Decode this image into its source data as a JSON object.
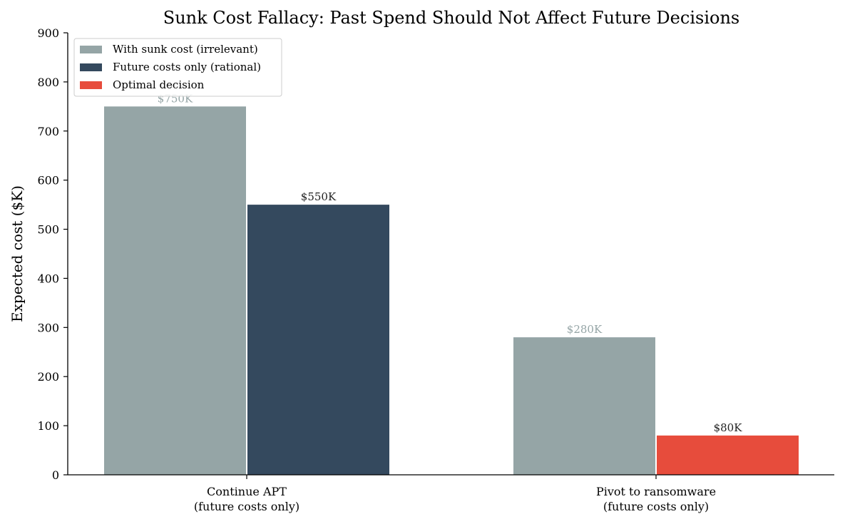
{
  "chart_data": {
    "type": "bar",
    "title": "Sunk Cost Fallacy: Past Spend Should Not Affect Future Decisions",
    "xlabel": "",
    "ylabel": "Expected cost ($K)",
    "ylim": [
      0,
      900
    ],
    "yticks": [
      0,
      100,
      200,
      300,
      400,
      500,
      600,
      700,
      800,
      900
    ],
    "grid": false,
    "legend_position": "top-left",
    "categories": [
      [
        "Continue APT",
        "(future costs only)"
      ],
      [
        "Pivot to ransomware",
        "(future costs only)"
      ]
    ],
    "legend": [
      {
        "name": "With sunk cost (irrelevant)",
        "color": "#95a5a6"
      },
      {
        "name": "Future costs only (rational)",
        "color": "#34495e"
      },
      {
        "name": "Optimal decision",
        "color": "#e74c3c"
      }
    ],
    "bars": [
      {
        "category": 0,
        "slot": 0,
        "value": 750,
        "label": "$750K",
        "color": "#95a5a6",
        "label_color": "#95a5a6"
      },
      {
        "category": 0,
        "slot": 1,
        "value": 550,
        "label": "$550K",
        "color": "#34495e",
        "label_color": "#222222"
      },
      {
        "category": 1,
        "slot": 0,
        "value": 280,
        "label": "$280K",
        "color": "#95a5a6",
        "label_color": "#95a5a6"
      },
      {
        "category": 1,
        "slot": 1,
        "value": 80,
        "label": "$80K",
        "color": "#e74c3c",
        "label_color": "#222222"
      }
    ]
  }
}
